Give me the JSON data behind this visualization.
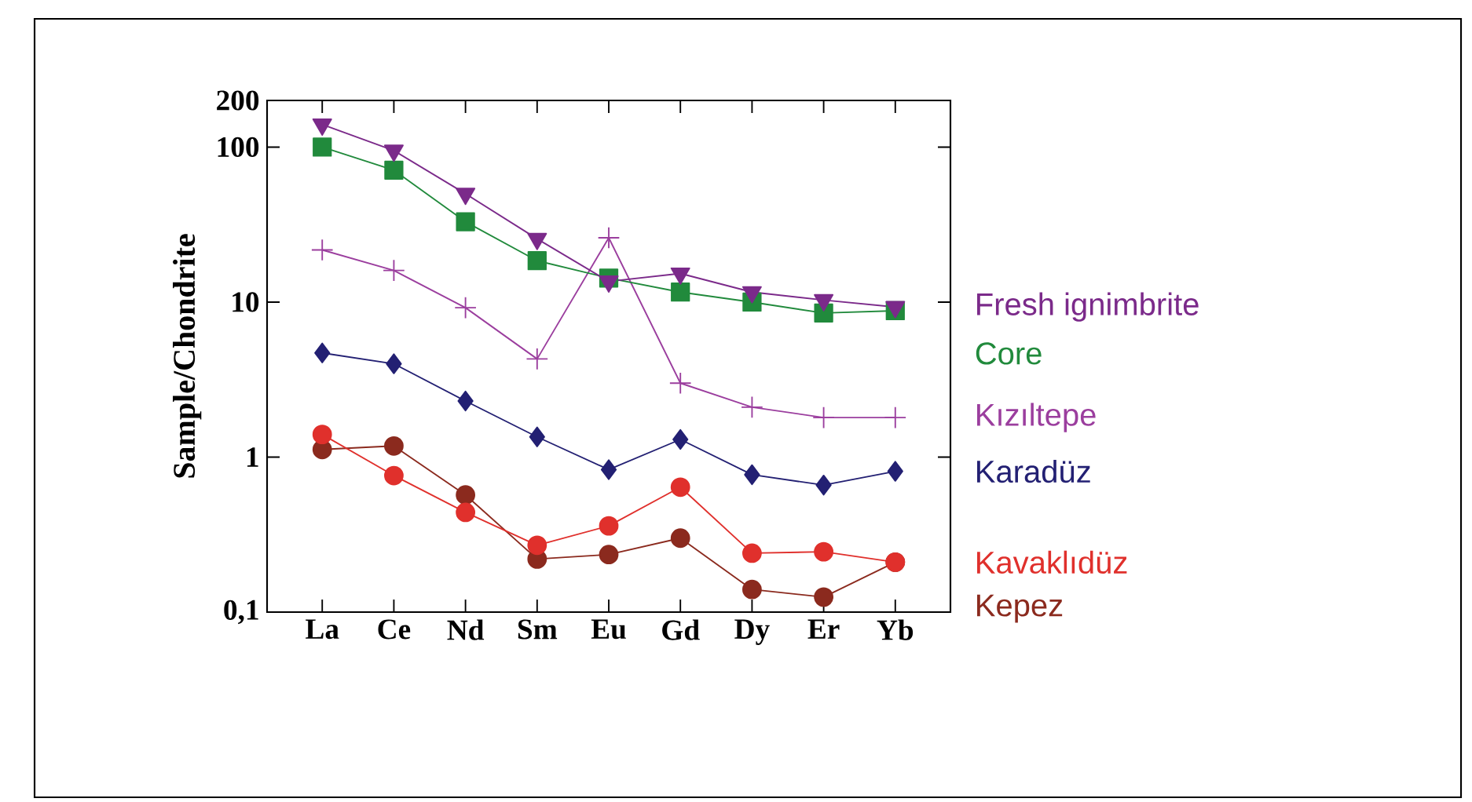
{
  "chart_data": {
    "type": "line",
    "ylabel": "Sample/Chondrite",
    "categories": [
      "La",
      "Ce",
      "Nd",
      "Sm",
      "Eu",
      "Gd",
      "Dy",
      "Er",
      "Yb"
    ],
    "log": "y",
    "ylim": [
      0.1,
      200
    ],
    "yticks": [
      {
        "value": 0.1,
        "label": "0,1"
      },
      1,
      10,
      100,
      200
    ],
    "legend": "right",
    "grid": false,
    "line_style": "solid",
    "series": [
      {
        "name": "Fresh ignimbrite",
        "color": "#7b2a8a",
        "marker": "triangle",
        "values": [
          140,
          95,
          50,
          25.6,
          13.6,
          15.3,
          11.6,
          10.3,
          9.3
        ]
      },
      {
        "name": "Core",
        "color": "#218a3c",
        "marker": "square",
        "values": [
          100,
          71,
          33,
          18.5,
          14.3,
          11.6,
          10,
          8.5,
          8.8
        ]
      },
      {
        "name": "Kızıltepe",
        "color": "#9b3e9e",
        "marker": "cross",
        "values": [
          21.7,
          16,
          9.2,
          4.3,
          26,
          3.0,
          2.1,
          1.8,
          1.8
        ]
      },
      {
        "name": "Karadüz",
        "color": "#232073",
        "marker": "diamond",
        "values": [
          4.7,
          4.0,
          2.3,
          1.35,
          0.83,
          1.3,
          0.77,
          0.66,
          0.81
        ]
      },
      {
        "name": "Kavaklıdüz",
        "color": "#e0302c",
        "marker": "circle",
        "values": [
          1.4,
          0.76,
          0.44,
          0.27,
          0.36,
          0.64,
          0.24,
          0.245,
          0.21
        ]
      },
      {
        "name": "Kepez",
        "color": "#8b2a1e",
        "marker": "circle",
        "values": [
          1.12,
          1.18,
          0.57,
          0.22,
          0.235,
          0.3,
          0.14,
          0.125,
          0.21
        ]
      }
    ]
  }
}
